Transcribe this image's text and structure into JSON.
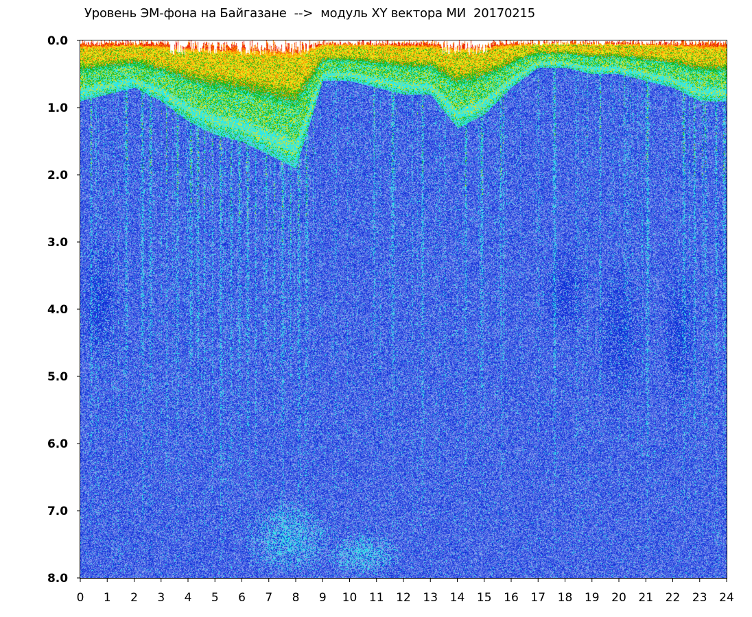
{
  "chart_data": {
    "type": "heatmap",
    "title": "Уровень ЭМ-фона на Байгазане  -->  модуль XY вектора МИ  20170215",
    "xlabel": "",
    "ylabel": "",
    "xlim": [
      0,
      24
    ],
    "ylim": [
      0,
      8.0
    ],
    "y_inverted": true,
    "grid": false,
    "legend": "none",
    "x_ticks": [
      "0",
      "1",
      "2",
      "3",
      "4",
      "5",
      "6",
      "7",
      "8",
      "9",
      "10",
      "11",
      "12",
      "13",
      "14",
      "15",
      "16",
      "17",
      "18",
      "19",
      "20",
      "21",
      "22",
      "23",
      "24"
    ],
    "y_ticks": [
      "0.0",
      "1.0",
      "2.0",
      "3.0",
      "4.0",
      "5.0",
      "6.0",
      "7.0",
      "8.0"
    ],
    "colorscale": [
      "#1030d8",
      "#4a64e6",
      "#8ea6ee",
      "#2ee8e8",
      "#18b818",
      "#f0e418",
      "#ff8a00",
      "#e81010"
    ],
    "intensity_profile": {
      "description_units": "hour of day vs. level; top band (0.0-1.0) high intensity across all hours",
      "hot_band_depth_by_hour": [
        {
          "hour": 0,
          "depth": 0.9
        },
        {
          "hour": 1,
          "depth": 0.8
        },
        {
          "hour": 2,
          "depth": 0.7
        },
        {
          "hour": 3,
          "depth": 0.9
        },
        {
          "hour": 4,
          "depth": 1.2
        },
        {
          "hour": 5,
          "depth": 1.4
        },
        {
          "hour": 6,
          "depth": 1.5
        },
        {
          "hour": 7,
          "depth": 1.7
        },
        {
          "hour": 8,
          "depth": 1.9
        },
        {
          "hour": 9,
          "depth": 0.6
        },
        {
          "hour": 10,
          "depth": 0.6
        },
        {
          "hour": 11,
          "depth": 0.7
        },
        {
          "hour": 12,
          "depth": 0.8
        },
        {
          "hour": 13,
          "depth": 0.8
        },
        {
          "hour": 14,
          "depth": 1.3
        },
        {
          "hour": 15,
          "depth": 1.1
        },
        {
          "hour": 16,
          "depth": 0.7
        },
        {
          "hour": 17,
          "depth": 0.4
        },
        {
          "hour": 18,
          "depth": 0.4
        },
        {
          "hour": 19,
          "depth": 0.5
        },
        {
          "hour": 20,
          "depth": 0.5
        },
        {
          "hour": 21,
          "depth": 0.6
        },
        {
          "hour": 22,
          "depth": 0.7
        },
        {
          "hour": 23,
          "depth": 0.9
        },
        {
          "hour": 24,
          "depth": 0.9
        }
      ],
      "streak_hours": [
        0.4,
        1.7,
        2.3,
        2.6,
        3.2,
        3.6,
        4.1,
        4.35,
        4.6,
        4.9,
        5.2,
        5.6,
        5.9,
        6.2,
        6.5,
        6.9,
        7.2,
        7.5,
        7.8,
        8.1,
        8.4,
        10.9,
        11.6,
        12.7,
        14.3,
        14.9,
        15.6,
        17.6,
        19.3,
        21.05,
        22.4,
        22.8,
        23.2,
        23.6,
        23.9
      ],
      "cool_regions": [
        {
          "hour_from": 17.0,
          "hour_to": 19.0,
          "level_from": 3.0,
          "level_to": 4.5
        },
        {
          "hour_from": 19.0,
          "hour_to": 21.0,
          "level_from": 3.2,
          "level_to": 5.6
        },
        {
          "hour_from": 21.5,
          "hour_to": 23.0,
          "level_from": 3.2,
          "level_to": 5.6
        },
        {
          "hour_from": 0.0,
          "hour_to": 1.5,
          "level_from": 2.8,
          "level_to": 5.0
        }
      ],
      "light_regions": [
        {
          "hour_from": 6.0,
          "hour_to": 9.5,
          "level_from": 6.8,
          "level_to": 8.0
        },
        {
          "hour_from": 9.0,
          "hour_to": 12.0,
          "level_from": 7.3,
          "level_to": 8.0
        }
      ]
    }
  }
}
